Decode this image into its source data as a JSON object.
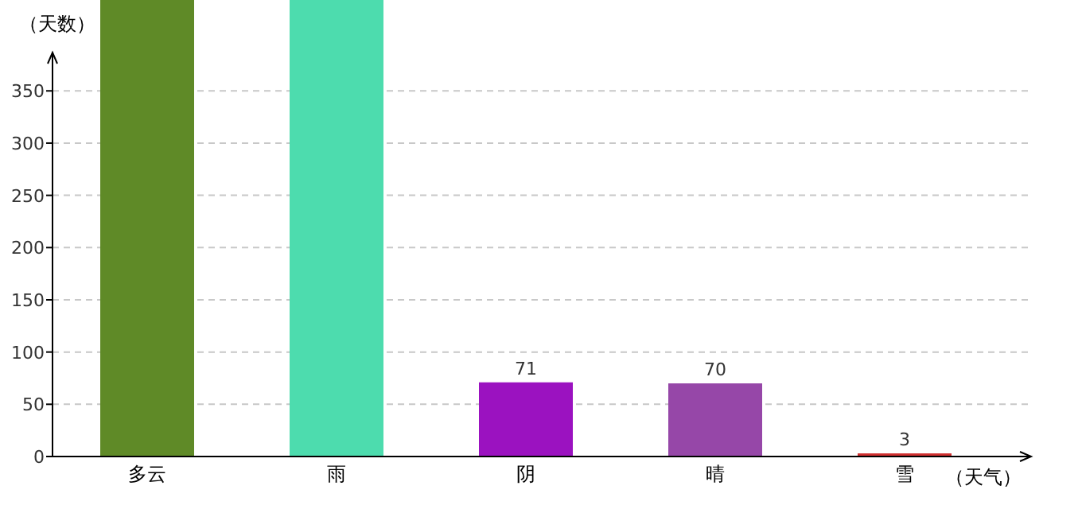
{
  "chart_data": {
    "type": "bar",
    "xlabel": "（天气）",
    "ylabel": "（天数）",
    "categories": [
      "多云",
      "雨",
      "阴",
      "晴",
      "雪"
    ],
    "values": [
      437,
      437,
      71,
      70,
      3
    ],
    "colors": [
      "#5f8a27",
      "#4ddcae",
      "#9b12c0",
      "#9647a8",
      "#d03030"
    ],
    "ylim": [
      0,
      437
    ],
    "yticks": [
      0,
      50,
      100,
      150,
      200,
      250,
      300,
      350
    ],
    "value_labels": [
      null,
      null,
      "71",
      "70",
      "3"
    ],
    "grid": "y"
  }
}
